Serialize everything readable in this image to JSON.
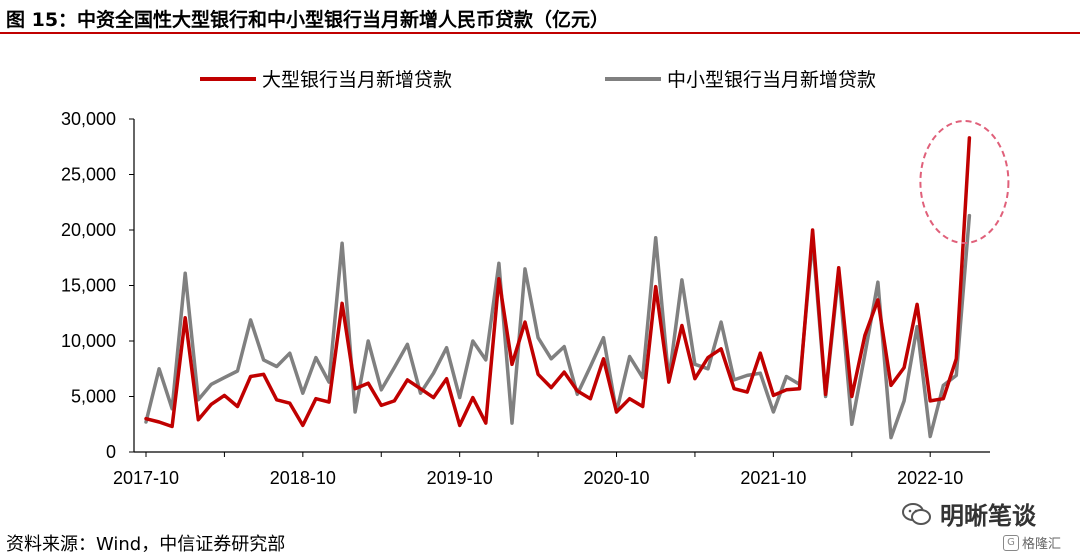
{
  "figure": {
    "title": "图 15：中资全国性大型银行和中小型银行当月新增人民币贷款（亿元）",
    "source": "资料来源：Wind，中信证券研究部",
    "watermark": "明晰笔谈",
    "badge": "格隆汇"
  },
  "colors": {
    "large_banks": "#c00000",
    "small_banks": "#808080",
    "title_rule": "#c00000",
    "highlight_circle": "#e0607a"
  },
  "chart_data": {
    "type": "line",
    "ylim": [
      0,
      30000
    ],
    "y_ticks": [
      "30,000",
      "25,000",
      "20,000",
      "15,000",
      "10,000",
      "5,000",
      "0"
    ],
    "y_tick_values": [
      30000,
      25000,
      20000,
      15000,
      10000,
      5000,
      0
    ],
    "x_tick_labels": [
      "2017-10",
      "2018-10",
      "2019-10",
      "2020-10",
      "2021-10",
      "2022-10"
    ],
    "x_tick_indices": [
      0,
      12,
      24,
      36,
      48,
      60
    ],
    "legend_position": "top",
    "grid": false,
    "annotation": "highlight ellipse around latest data point",
    "series": [
      {
        "name": "大型银行当月新增贷款",
        "color": "#c00000",
        "values": [
          3000,
          2700,
          2300,
          12100,
          2900,
          4300,
          5100,
          4100,
          6800,
          7000,
          4700,
          4400,
          2400,
          4800,
          4500,
          13400,
          5700,
          6200,
          4200,
          4600,
          6500,
          5700,
          4900,
          6600,
          2400,
          4900,
          2600,
          15600,
          7900,
          11700,
          7000,
          5800,
          7200,
          5500,
          4800,
          8400,
          3600,
          4800,
          4100,
          14900,
          6300,
          11400,
          6600,
          8500,
          9300,
          5700,
          5400,
          8900,
          5100,
          5600,
          5700,
          20000,
          5200,
          16600,
          5000,
          10500,
          13700,
          6000,
          7600,
          13300,
          4600,
          4800,
          8400,
          28300
        ]
      },
      {
        "name": "中小型银行当月新增贷款",
        "color": "#808080",
        "values": [
          2700,
          7500,
          3900,
          16100,
          4700,
          6100,
          6700,
          7300,
          11900,
          8300,
          7700,
          8900,
          5300,
          8500,
          6300,
          18800,
          3600,
          10000,
          5600,
          7600,
          9700,
          5300,
          7100,
          9400,
          4900,
          10000,
          8300,
          17000,
          2600,
          16500,
          10300,
          8400,
          9500,
          5200,
          7700,
          10300,
          3600,
          8600,
          6700,
          19300,
          6500,
          15500,
          7900,
          7500,
          11700,
          6500,
          6900,
          7100,
          3600,
          6800,
          6100,
          19200,
          5000,
          16100,
          2500,
          8800,
          15300,
          1300,
          4600,
          11300,
          1400,
          6000,
          6900,
          21300
        ]
      }
    ]
  }
}
